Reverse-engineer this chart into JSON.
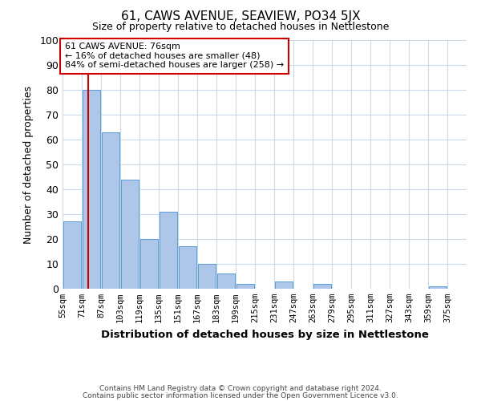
{
  "title": "61, CAWS AVENUE, SEAVIEW, PO34 5JX",
  "subtitle": "Size of property relative to detached houses in Nettlestone",
  "xlabel": "Distribution of detached houses by size in Nettlestone",
  "ylabel": "Number of detached properties",
  "footer_lines": [
    "Contains HM Land Registry data © Crown copyright and database right 2024.",
    "Contains public sector information licensed under the Open Government Licence v3.0."
  ],
  "bin_labels": [
    "55sqm",
    "71sqm",
    "87sqm",
    "103sqm",
    "119sqm",
    "135sqm",
    "151sqm",
    "167sqm",
    "183sqm",
    "199sqm",
    "215sqm",
    "231sqm",
    "247sqm",
    "263sqm",
    "279sqm",
    "295sqm",
    "311sqm",
    "327sqm",
    "343sqm",
    "359sqm",
    "375sqm"
  ],
  "bin_edges": [
    55,
    71,
    87,
    103,
    119,
    135,
    151,
    167,
    183,
    199,
    215,
    231,
    247,
    263,
    279,
    295,
    311,
    327,
    343,
    359,
    375
  ],
  "bar_heights": [
    27,
    80,
    63,
    44,
    20,
    31,
    17,
    10,
    6,
    2,
    0,
    3,
    0,
    2,
    0,
    0,
    0,
    0,
    0,
    1,
    0
  ],
  "bar_color": "#aec6e8",
  "bar_edge_color": "#5b9bd5",
  "property_size": 76,
  "vline_color": "#cc0000",
  "annotation_box_color": "#cc0000",
  "annotation_text": "61 CAWS AVENUE: 76sqm\n← 16% of detached houses are smaller (48)\n84% of semi-detached houses are larger (258) →",
  "ylim": [
    0,
    100
  ],
  "grid_color": "#ccd9e8",
  "background_color": "#ffffff"
}
